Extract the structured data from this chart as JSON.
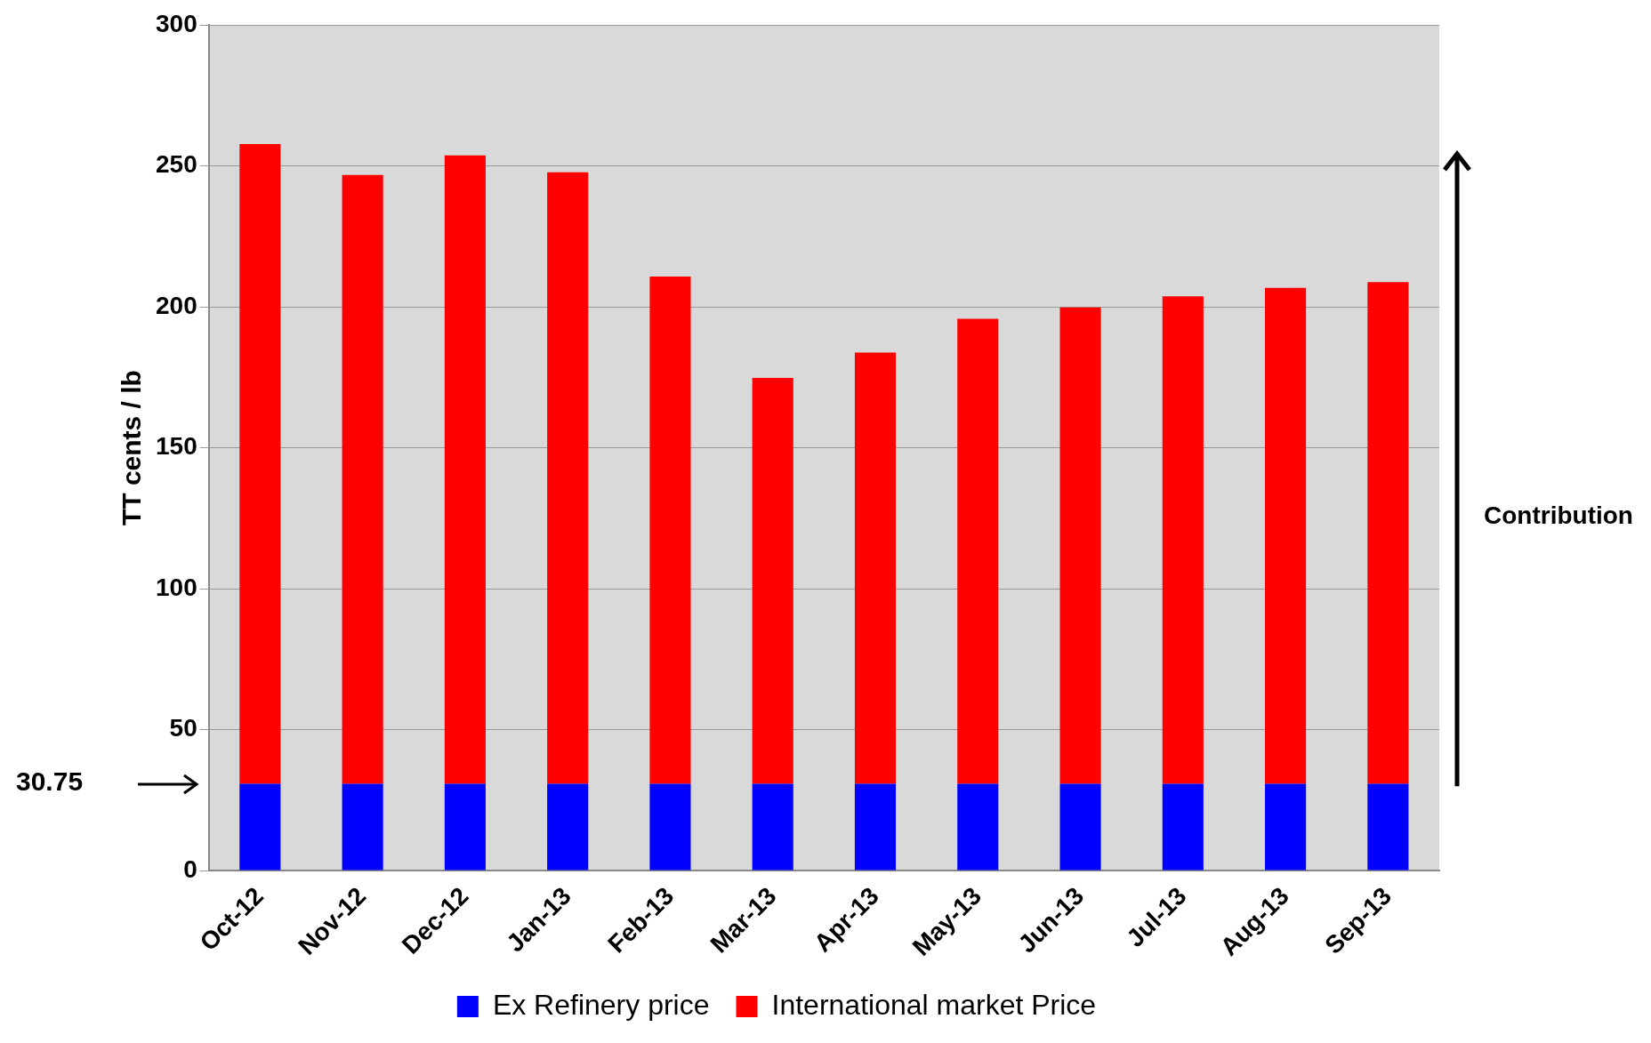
{
  "chart_data": {
    "type": "bar",
    "ylabel": "TT cents / lb",
    "categories": [
      "Oct-12",
      "Nov-12",
      "Dec-12",
      "Jan-13",
      "Feb-13",
      "Mar-13",
      "Apr-13",
      "May-13",
      "Jun-13",
      "Jul-13",
      "Aug-13",
      "Sep-13"
    ],
    "series": [
      {
        "name": "Ex Refinery price",
        "color": "#0000ff",
        "values": [
          30.75,
          30.75,
          30.75,
          30.75,
          30.75,
          30.75,
          30.75,
          30.75,
          30.75,
          30.75,
          30.75,
          30.75
        ]
      },
      {
        "name": "International market Price",
        "color": "#ff0000",
        "values": [
          227,
          216,
          223,
          217,
          180,
          144,
          153,
          165,
          169,
          173,
          176,
          178
        ]
      }
    ],
    "stacked": true,
    "ylim": [
      0,
      300
    ],
    "yticks": [
      0,
      50,
      100,
      150,
      200,
      250,
      300
    ],
    "grid": "y",
    "legend": "bottom",
    "annotations": [
      "30.75",
      "Contribution"
    ]
  }
}
